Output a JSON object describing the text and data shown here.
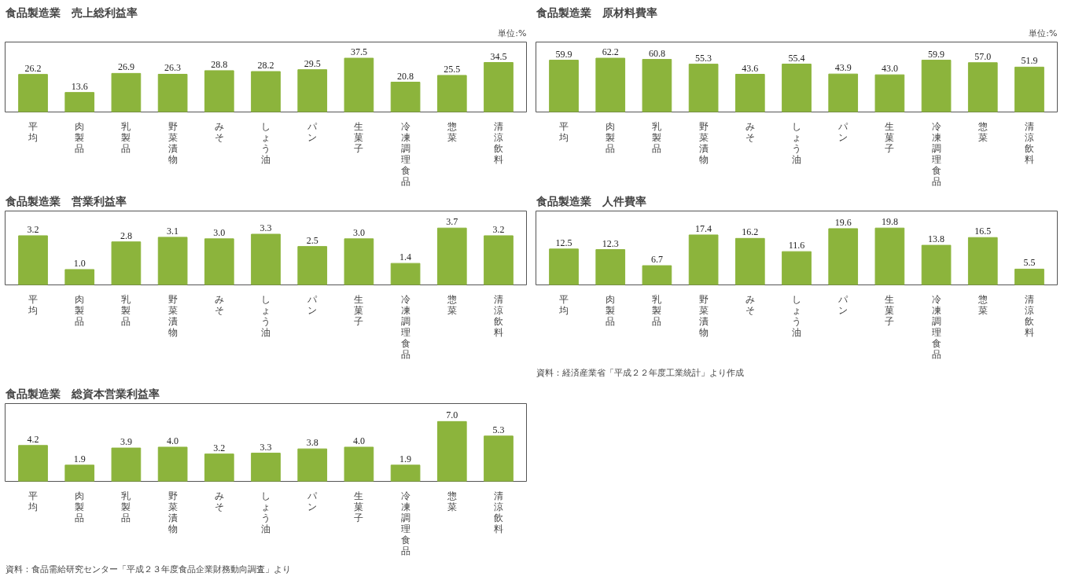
{
  "chart_data": [
    {
      "type": "bar",
      "title": "食品製造業　売上総利益率",
      "annotations": [
        "単位:%"
      ],
      "categories": [
        "平均",
        "肉製品",
        "乳製品",
        "野菜漬物",
        "みそ",
        "しょう油",
        "パン",
        "生菓子",
        "冷凍調理食品",
        "惣菜",
        "清涼飲料"
      ],
      "values": [
        26.2,
        13.6,
        26.9,
        26.3,
        28.8,
        28.2,
        29.5,
        37.5,
        20.8,
        25.5,
        34.5
      ],
      "value_labels": [
        "26.2",
        "13.6",
        "26.9",
        "26.3",
        "28.8",
        "28.2",
        "29.5",
        "37.5",
        "20.8",
        "25.5",
        "34.5"
      ],
      "color": "#8cb43c",
      "tick_labels": "x",
      "grid": false
    },
    {
      "type": "bar",
      "title": "食品製造業　原材料費率",
      "annotations": [
        "単位:%"
      ],
      "categories": [
        "平均",
        "肉製品",
        "乳製品",
        "野菜漬物",
        "みそ",
        "しょう油",
        "パン",
        "生菓子",
        "冷凍調理食品",
        "惣菜",
        "清涼飲料"
      ],
      "values": [
        59.9,
        62.2,
        60.8,
        55.3,
        43.6,
        55.4,
        43.9,
        43,
        59.9,
        57,
        51.9
      ],
      "value_labels": [
        "59.9",
        "62.2",
        "60.8",
        "55.3",
        "43.6",
        "55.4",
        "43.9",
        "43.0",
        "59.9",
        "57.0",
        "51.9"
      ],
      "color": "#8cb43c",
      "tick_labels": "x",
      "grid": false
    },
    {
      "type": "bar",
      "title": "食品製造業　営業利益率",
      "categories": [
        "平均",
        "肉製品",
        "乳製品",
        "野菜漬物",
        "みそ",
        "しょう油",
        "パン",
        "生菓子",
        "冷凍調理食品",
        "惣菜",
        "清涼飲料"
      ],
      "values": [
        3.2,
        1,
        2.8,
        3.1,
        3,
        3.3,
        2.5,
        3,
        1.4,
        3.7,
        3.2
      ],
      "value_labels": [
        "3.2",
        "1.0",
        "2.8",
        "3.1",
        "3.0",
        "3.3",
        "2.5",
        "3.0",
        "1.4",
        "3.7",
        "3.2"
      ],
      "color": "#8cb43c",
      "tick_labels": "x",
      "grid": false
    },
    {
      "type": "bar",
      "title": "食品製造業　人件費率",
      "annotations": [
        "資料：経済産業省「平成２２年度工業統計」より作成"
      ],
      "categories": [
        "平均",
        "肉製品",
        "乳製品",
        "野菜漬物",
        "みそ",
        "しょう油",
        "パン",
        "生菓子",
        "冷凍調理食品",
        "惣菜",
        "清涼飲料"
      ],
      "values": [
        12.5,
        12.3,
        6.7,
        17.4,
        16.2,
        11.6,
        19.6,
        19.8,
        13.8,
        16.5,
        5.5
      ],
      "value_labels": [
        "12.5",
        "12.3",
        "6.7",
        "17.4",
        "16.2",
        "11.6",
        "19.6",
        "19.8",
        "13.8",
        "16.5",
        "5.5"
      ],
      "color": "#8cb43c",
      "tick_labels": "x",
      "grid": false
    },
    {
      "type": "bar",
      "title": "食品製造業　総資本営業利益率",
      "annotations": [
        "資料：食品需給研究センター「平成２３年度食品企業財務動向調査」より"
      ],
      "categories": [
        "平均",
        "肉製品",
        "乳製品",
        "野菜漬物",
        "みそ",
        "しょう油",
        "パン",
        "生菓子",
        "冷凍調理食品",
        "惣菜",
        "清涼飲料"
      ],
      "values": [
        4.2,
        1.9,
        3.9,
        4,
        3.2,
        3.3,
        3.8,
        4,
        1.9,
        7,
        5.3
      ],
      "value_labels": [
        "4.2",
        "1.9",
        "3.9",
        "4.0",
        "3.2",
        "3.3",
        "3.8",
        "4.0",
        "1.9",
        "7.0",
        "5.3"
      ],
      "color": "#8cb43c",
      "tick_labels": "x",
      "grid": false
    }
  ]
}
